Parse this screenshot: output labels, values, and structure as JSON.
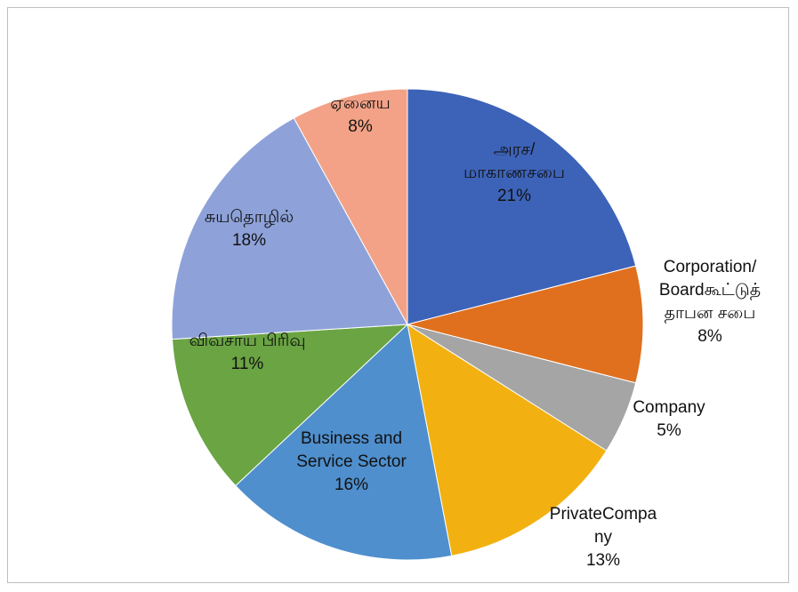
{
  "chart_data": {
    "type": "pie",
    "categories": [
      "அரச/\nமாகாணசபை",
      "Corporation/\nBoardகூட்டுத்\nதாபன சபை",
      "Company",
      "PrivateCompa\nny",
      "Business and\nService Sector",
      "விவசாய பிரிவு",
      "சுயதொழில்",
      "ஏனைய"
    ],
    "values": [
      21,
      8,
      5,
      13,
      16,
      11,
      18,
      8
    ],
    "value_labels": [
      "21%",
      "8%",
      "5%",
      "13%",
      "16%",
      "11%",
      "18%",
      "8%"
    ],
    "colors": [
      "#3d63b8",
      "#e0701e",
      "#a5a5a5",
      "#f2b111",
      "#4f8fcd",
      "#6aa443",
      "#8ea2d9",
      "#f3a287"
    ]
  }
}
